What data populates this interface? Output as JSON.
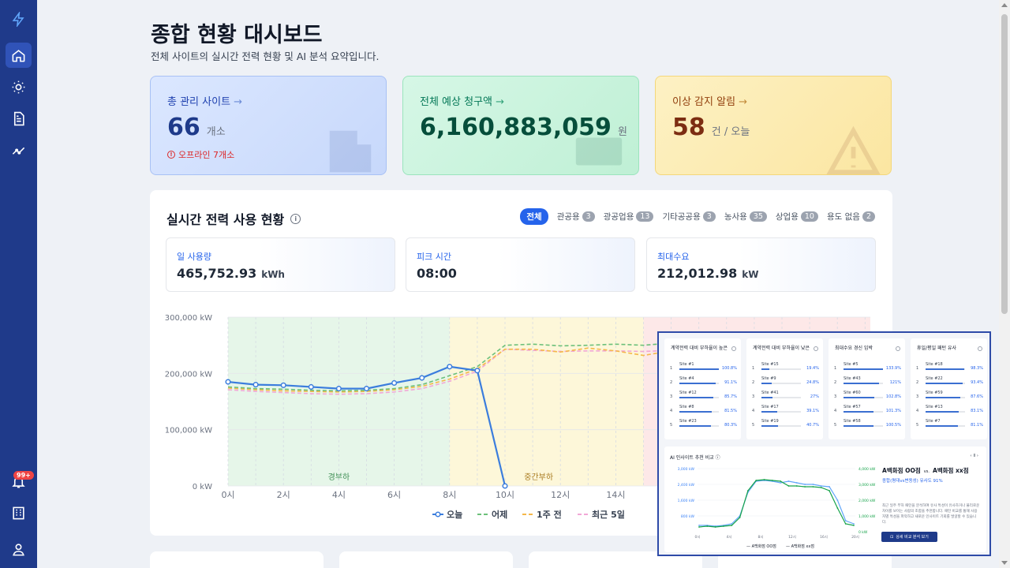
{
  "sidebar": {
    "items": [
      {
        "name": "logo-bolt-icon"
      },
      {
        "name": "home-icon"
      },
      {
        "name": "sun-icon"
      },
      {
        "name": "document-icon"
      },
      {
        "name": "analytics-icon"
      },
      {
        "name": "bell-icon"
      },
      {
        "name": "building-icon"
      },
      {
        "name": "user-icon"
      }
    ],
    "alert_badge": "99+"
  },
  "header": {
    "title": "종합 현황 대시보드",
    "subtitle": "전체 사이트의 실시간 전력 현황 및 AI 분석 요약입니다."
  },
  "summary_cards": [
    {
      "label": "총 관리 사이트",
      "value": "66",
      "unit": "개소",
      "note": "오프라인 7개소",
      "color": "#1e3a8a"
    },
    {
      "label": "전체 예상 청구액",
      "value": "6,160,883,059",
      "unit": "원",
      "color": "#064e3b"
    },
    {
      "label": "이상 감지 알림",
      "value": "58",
      "unit": "건 / 오늘",
      "color": "#7c2d12"
    }
  ],
  "realtime": {
    "title": "실시간 전력 사용 현황",
    "filters": [
      {
        "label": "전체",
        "count": ""
      },
      {
        "label": "관공용",
        "count": "3"
      },
      {
        "label": "광공업용",
        "count": "13"
      },
      {
        "label": "기타공공용",
        "count": "3"
      },
      {
        "label": "농사용",
        "count": "35"
      },
      {
        "label": "상업용",
        "count": "10"
      },
      {
        "label": "용도 없음",
        "count": "2"
      }
    ],
    "stats": [
      {
        "label": "일 사용량",
        "value": "465,752.93",
        "unit": "kWh"
      },
      {
        "label": "피크 시간",
        "value": "08:00",
        "unit": ""
      },
      {
        "label": "최대수요",
        "value": "212,012.98",
        "unit": "kW"
      }
    ]
  },
  "chart_data": {
    "type": "line",
    "y_ticks": [
      "300,000 kW",
      "200,000 kW",
      "100,000 kW",
      "0 kW"
    ],
    "x_ticks": [
      "0시",
      "2시",
      "4시",
      "6시",
      "8시",
      "10시",
      "12시",
      "14시"
    ],
    "ylim": [
      0,
      300000
    ],
    "zones": [
      {
        "label": "경부하",
        "from": 0,
        "to": 8,
        "color": "#e6f6e9"
      },
      {
        "label": "중간부하",
        "from": 8,
        "to": 15,
        "color": "#fdf7d9"
      }
    ],
    "series": [
      {
        "name": "오늘",
        "color": "#3b7ddd",
        "dash": "",
        "marker": true,
        "x": [
          0,
          1,
          2,
          3,
          4,
          5,
          6,
          7,
          8,
          9,
          10
        ],
        "y": [
          185000,
          180000,
          179000,
          176000,
          173000,
          173000,
          183000,
          192000,
          212000,
          205000,
          0
        ]
      },
      {
        "name": "어제",
        "color": "#6cc07a",
        "dash": "5,3",
        "marker": false,
        "x": [
          0,
          1,
          2,
          3,
          4,
          5,
          6,
          7,
          8,
          9,
          10,
          11,
          12,
          13,
          14,
          15,
          16,
          17,
          18
        ],
        "y": [
          176000,
          173000,
          172000,
          170000,
          169000,
          170000,
          173000,
          180000,
          196000,
          212000,
          250000,
          252000,
          249000,
          250000,
          252000,
          250000,
          254000,
          257000,
          255000
        ]
      },
      {
        "name": "1주 전",
        "color": "#f5b84a",
        "dash": "5,3",
        "marker": false,
        "x": [
          0,
          1,
          2,
          3,
          4,
          5,
          6,
          7,
          8,
          9,
          10,
          11,
          12,
          13,
          14,
          15,
          16,
          17,
          18
        ],
        "y": [
          174000,
          171000,
          169000,
          168000,
          167000,
          168000,
          171000,
          177000,
          190000,
          208000,
          243000,
          243000,
          238000,
          245000,
          240000,
          232000,
          240000,
          228000,
          232000
        ]
      },
      {
        "name": "최근 5일",
        "color": "#f2a7d6",
        "dash": "5,3",
        "marker": false,
        "x": [
          0,
          1,
          2,
          3,
          4,
          5,
          6,
          7,
          8,
          9,
          10,
          11,
          12,
          13,
          14,
          15,
          16,
          17,
          18
        ],
        "y": [
          171000,
          168000,
          166000,
          164000,
          163000,
          164000,
          167000,
          173000,
          186000,
          204000,
          243000,
          241000,
          239000,
          240000,
          240000,
          239000,
          241000,
          240000,
          238000
        ]
      }
    ]
  },
  "overlay": {
    "cards": [
      {
        "title": "계약전력 대비 부하율이 높은",
        "rows": [
          {
            "rank": "1",
            "name": "Site #1",
            "pct": "100.8%",
            "value": 1.0
          },
          {
            "rank": "2",
            "name": "Site #4",
            "pct": "91.1%",
            "value": 0.91
          },
          {
            "rank": "3",
            "name": "Site #12",
            "pct": "85.7%",
            "value": 0.86
          },
          {
            "rank": "4",
            "name": "Site #8",
            "pct": "81.5%",
            "value": 0.82
          },
          {
            "rank": "5",
            "name": "Site #23",
            "pct": "80.3%",
            "value": 0.8
          }
        ]
      },
      {
        "title": "계약전력 대비 부하율이 낮은",
        "rows": [
          {
            "rank": "1",
            "name": "Site #15",
            "pct": "19.4%",
            "value": 0.19
          },
          {
            "rank": "2",
            "name": "Site #9",
            "pct": "24.8%",
            "value": 0.25
          },
          {
            "rank": "3",
            "name": "Site #41",
            "pct": "27%",
            "value": 0.27
          },
          {
            "rank": "4",
            "name": "Site #17",
            "pct": "39.1%",
            "value": 0.39
          },
          {
            "rank": "5",
            "name": "Site #19",
            "pct": "40.7%",
            "value": 0.41
          }
        ]
      },
      {
        "title": "최대수요 경신 임박",
        "rows": [
          {
            "rank": "1",
            "name": "Site #5",
            "pct": "133.9%",
            "value": 1.0
          },
          {
            "rank": "2",
            "name": "Site #43",
            "pct": "121%",
            "value": 0.9
          },
          {
            "rank": "3",
            "name": "Site #60",
            "pct": "102.8%",
            "value": 0.77
          },
          {
            "rank": "4",
            "name": "Site #57",
            "pct": "101.3%",
            "value": 0.76
          },
          {
            "rank": "5",
            "name": "Site #58",
            "pct": "100.5%",
            "value": 0.75
          }
        ]
      },
      {
        "title": "휴일/평일 패턴 유사",
        "rows": [
          {
            "rank": "1",
            "name": "Site #18",
            "pct": "98.3%",
            "value": 0.98
          },
          {
            "rank": "2",
            "name": "Site #22",
            "pct": "93.4%",
            "value": 0.93
          },
          {
            "rank": "3",
            "name": "Site #59",
            "pct": "87.6%",
            "value": 0.88
          },
          {
            "rank": "4",
            "name": "Site #13",
            "pct": "83.1%",
            "value": 0.83
          },
          {
            "rank": "5",
            "name": "Site #7",
            "pct": "81.1%",
            "value": 0.81
          }
        ]
      }
    ],
    "compare": {
      "title": "AI 인사이트 추천 비교",
      "site_a": "A백화점 OO점",
      "vs": "vs.",
      "site_b": "A백화점 xx점",
      "similarity": "종합(평대vs변동성) 유사도 91%",
      "description": "최근 일주 부하 패턴을 분석하여 유사 특성이 유사하거나 불리로운 차이를 보이는 사람의 조합을 추천합니다. 패턴 비교를 통해 사용자별 특성을 파악하고 새로운 인사이트 기회를 발굴할 수 있습니다.",
      "button": "상세 비교 분석 보기",
      "legend_a": "A백화점 OO점",
      "legend_b": "A백화점 xx점",
      "nav": "‹ Ⅱ ›",
      "left_ticks": [
        "3,000 kW",
        "2,400 kW",
        "1,600 kW",
        "800 kW"
      ],
      "right_ticks": [
        "4,000 kW",
        "3,000 kW",
        "2,000 kW",
        "1,000 kW",
        "0 kW"
      ],
      "x_ticks": [
        "0시",
        "4시",
        "8시",
        "12시",
        "16시",
        "20시"
      ]
    }
  }
}
